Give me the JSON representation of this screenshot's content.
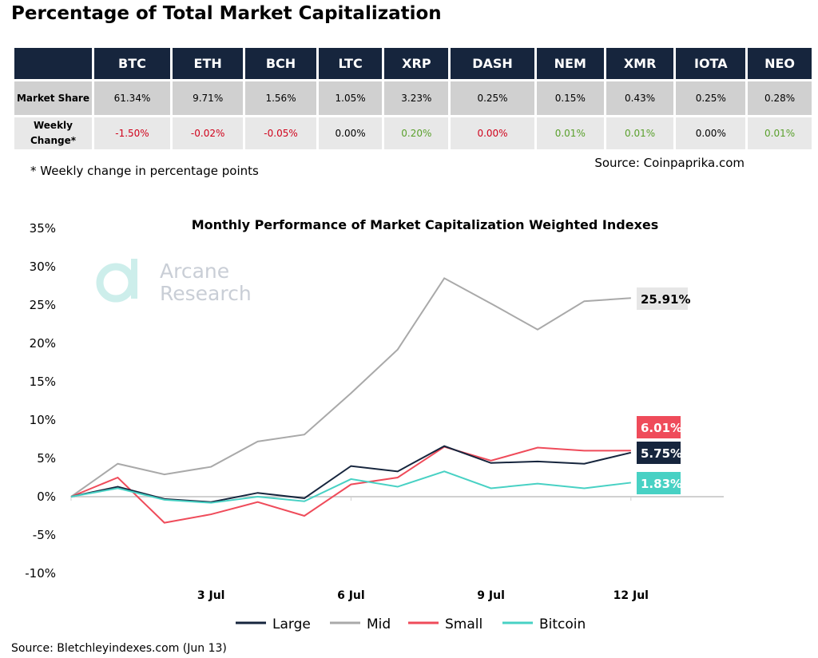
{
  "title": "Percentage of Total Market Capitalization",
  "table": {
    "columns": [
      "BTC",
      "ETH",
      "BCH",
      "LTC",
      "XRP",
      "DASH",
      "NEM",
      "XMR",
      "IOTA",
      "NEO"
    ],
    "market_share_label": "Market Share",
    "weekly_change_label": "Weekly Change*",
    "market_share": [
      "61.34%",
      "9.71%",
      "1.56%",
      "1.05%",
      "3.23%",
      "0.25%",
      "0.15%",
      "0.43%",
      "0.25%",
      "0.28%"
    ],
    "weekly_change": [
      "-1.50%",
      "-0.02%",
      "-0.05%",
      "0.00%",
      "0.20%",
      "0.00%",
      "0.01%",
      "0.01%",
      "0.00%",
      "0.01%"
    ],
    "weekly_change_colors": [
      "#d0021b",
      "#d0021b",
      "#d0021b",
      "#000000",
      "#5aa02c",
      "#d0021b",
      "#5aa02c",
      "#5aa02c",
      "#000000",
      "#5aa02c"
    ]
  },
  "footnote": "* Weekly change in percentage points",
  "source_top": "Source: Coinpaprika.com",
  "source_bottom": "Source: Bletchleyindexes.com (Jun 13)",
  "watermark": "Arcane Research",
  "chart_data": {
    "type": "line",
    "title": "Monthly Performance of Market Capitalization Weighted Indexes",
    "xtick_labels": [
      {
        "index": 3,
        "label": "3 Jul"
      },
      {
        "index": 6,
        "label": "6 Jul"
      },
      {
        "index": 9,
        "label": "9 Jul"
      },
      {
        "index": 12,
        "label": "12 Jul"
      }
    ],
    "ylim": [
      -10,
      35
    ],
    "yticks": [
      "-10%",
      "-5%",
      "0%",
      "5%",
      "10%",
      "15%",
      "20%",
      "25%",
      "30%",
      "35%"
    ],
    "grid": false,
    "legend": "bottom",
    "series": [
      {
        "name": "Large",
        "color": "#16253d",
        "values": [
          0,
          1.3,
          -0.3,
          -0.7,
          0.5,
          -0.2,
          4.0,
          3.3,
          6.6,
          4.4,
          4.6,
          4.3,
          5.75
        ],
        "end_label": "5.75%",
        "label_bg": "#16253d",
        "label_fg": "#ffffff"
      },
      {
        "name": "Mid",
        "color": "#a9a9a9",
        "values": [
          0,
          4.3,
          2.9,
          3.9,
          7.2,
          8.1,
          13.5,
          19.2,
          28.5,
          25.2,
          21.8,
          25.5,
          25.91
        ],
        "end_label": "25.91%",
        "label_bg": "#e6e6e6",
        "label_fg": "#000000"
      },
      {
        "name": "Small",
        "color": "#ef4b5a",
        "values": [
          0,
          2.5,
          -3.4,
          -2.3,
          -0.7,
          -2.5,
          1.6,
          2.5,
          6.5,
          4.7,
          6.4,
          6.0,
          6.01
        ],
        "end_label": "6.01%",
        "label_bg": "#ef4b5a",
        "label_fg": "#ffffff"
      },
      {
        "name": "Bitcoin",
        "color": "#48d1c4",
        "values": [
          0,
          1.1,
          -0.4,
          -0.8,
          0.0,
          -0.6,
          2.3,
          1.3,
          3.3,
          1.1,
          1.7,
          1.1,
          1.83
        ],
        "end_label": "1.83%",
        "label_bg": "#48d1c4",
        "label_fg": "#ffffff"
      }
    ]
  }
}
